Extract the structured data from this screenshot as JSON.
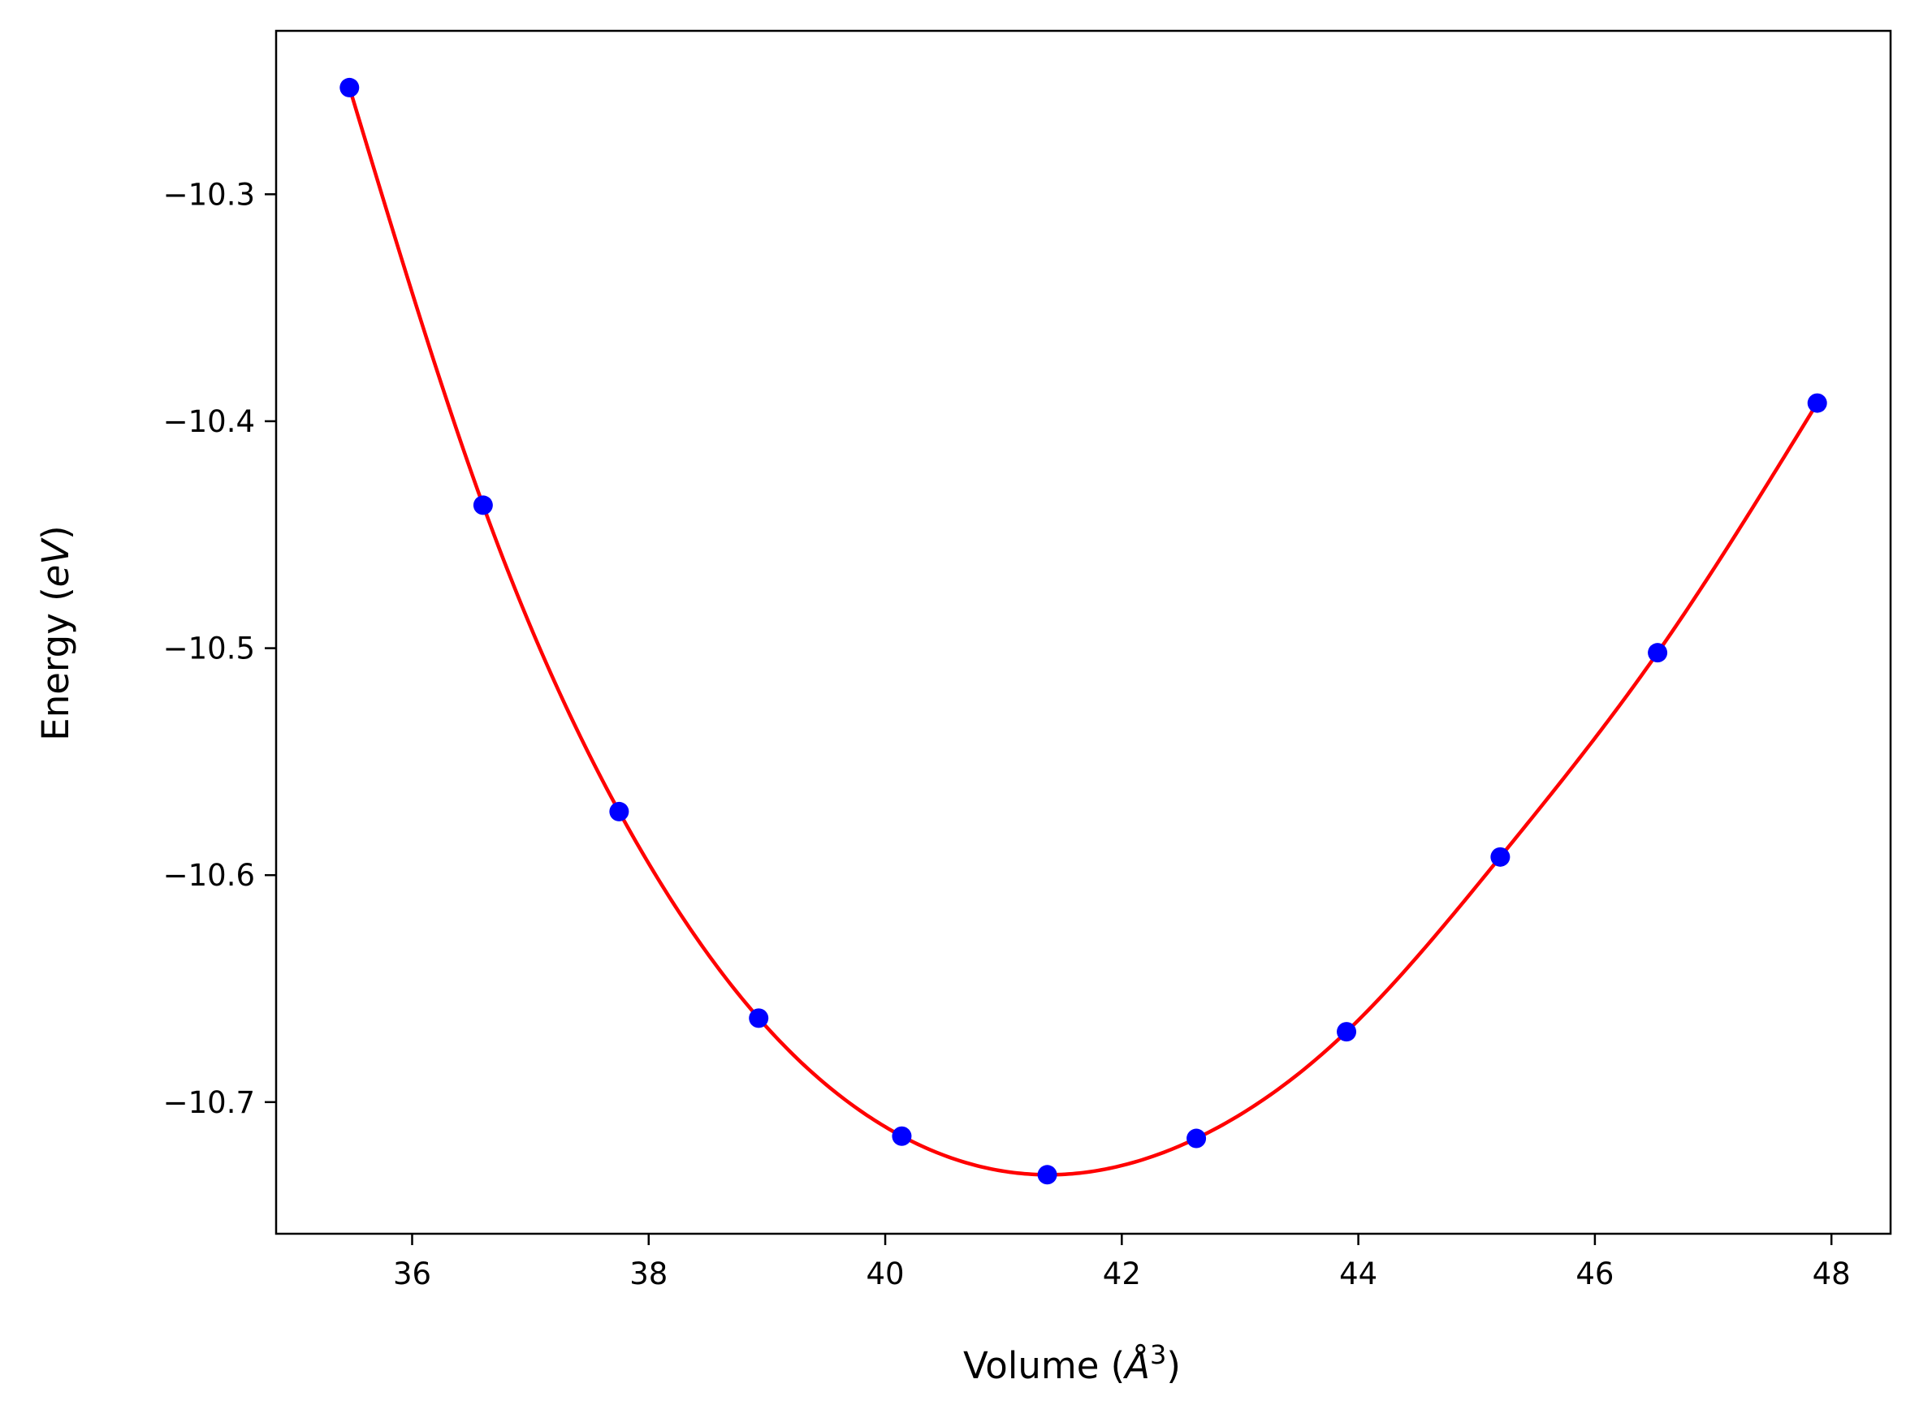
{
  "chart_data": {
    "type": "scatter",
    "title": "",
    "xlabel": "Volume (Å³)",
    "xlabel_parts": {
      "prefix": "Volume (",
      "symbol": "Å",
      "power": "3",
      "suffix": ")"
    },
    "ylabel": "Energy (eV)",
    "ylabel_parts": {
      "prefix": "Energy (",
      "italic": "eV",
      "suffix": ")"
    },
    "xlim": [
      34.85,
      48.5
    ],
    "ylim": [
      -10.758,
      -10.228
    ],
    "xticks": [
      36,
      38,
      40,
      42,
      44,
      46,
      48
    ],
    "xtick_labels": [
      "36",
      "38",
      "40",
      "42",
      "44",
      "46",
      "48"
    ],
    "yticks": [
      -10.3,
      -10.4,
      -10.5,
      -10.6,
      -10.7
    ],
    "ytick_labels": [
      "−10.3",
      "−10.4",
      "−10.5",
      "−10.6",
      "−10.7"
    ],
    "grid": false,
    "legend": "none",
    "series": [
      {
        "kind": "points",
        "color": "#0000ff",
        "x": [
          35.47,
          36.6,
          37.75,
          38.93,
          40.14,
          41.37,
          42.63,
          43.9,
          45.2,
          46.53,
          47.88
        ],
        "y": [
          -10.253,
          -10.437,
          -10.572,
          -10.663,
          -10.715,
          -10.732,
          -10.716,
          -10.669,
          -10.592,
          -10.502,
          -10.392
        ]
      },
      {
        "kind": "fit-curve",
        "color": "#ff0000",
        "x_range": [
          35.47,
          47.88
        ]
      }
    ]
  }
}
